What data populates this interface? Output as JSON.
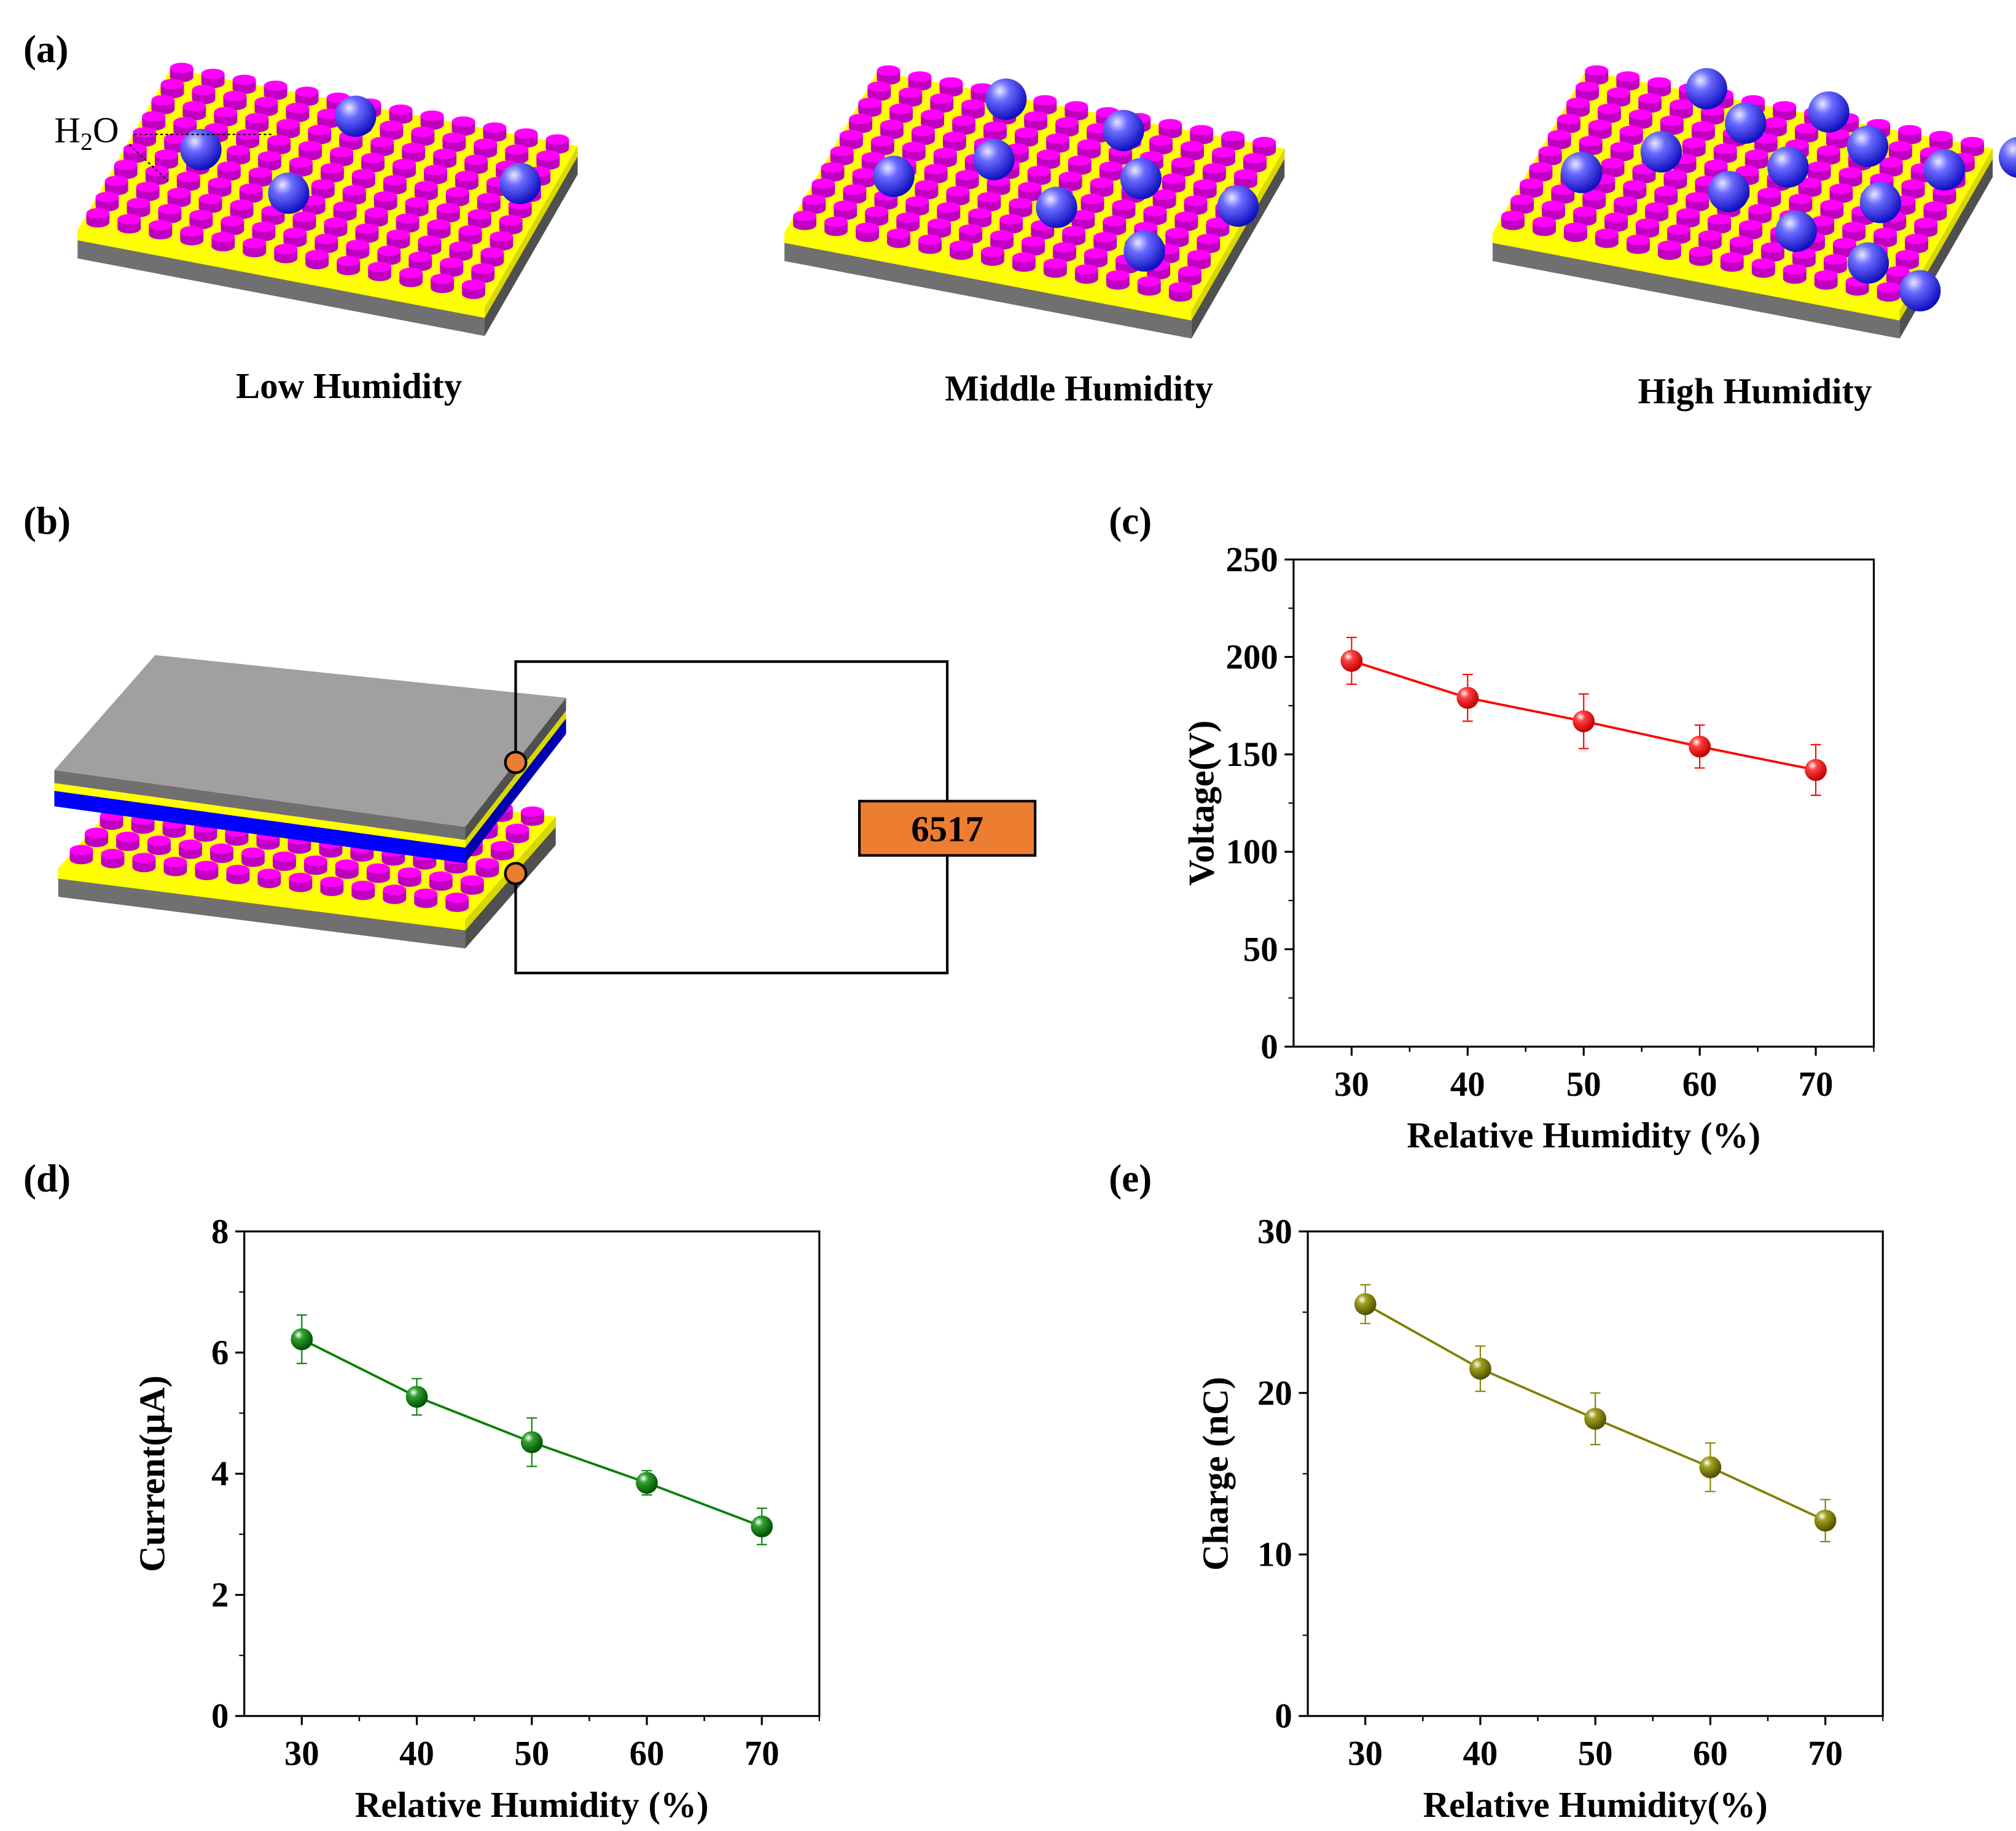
{
  "panel_labels": {
    "a": "(a)",
    "b": "(b)",
    "c": "(c)",
    "d": "(d)",
    "e": "(e)"
  },
  "panel_a": {
    "h2o": {
      "main": "H",
      "sub": "2",
      "tail": "O"
    },
    "captions": [
      "Low Humidity",
      "Middle Humidity",
      "High Humidity"
    ]
  },
  "panel_b": {
    "meter_label": "6517"
  },
  "colors": {
    "pillar": "#ff00ff",
    "electrode": "#ffff00",
    "substrate": "#808080",
    "water": "#3030ff",
    "dielectric": "#0000ff",
    "meter": "#ed7d31",
    "voltage": "#ff0000",
    "current": "#008000",
    "charge": "#808000"
  },
  "chart_data": [
    {
      "id": "c",
      "type": "line",
      "xlabel": "Relative Humidity (%)",
      "ylabel": "Voltage(V)",
      "xlim": [
        25,
        75
      ],
      "ylim": [
        0,
        250
      ],
      "xticks": [
        30,
        40,
        50,
        60,
        70
      ],
      "yticks": [
        0,
        50,
        100,
        150,
        200,
        250
      ],
      "x": [
        30,
        40,
        50,
        60,
        70
      ],
      "series": [
        {
          "name": "Voltage",
          "color": "#ff0000",
          "values": [
            198,
            179,
            167,
            154,
            142
          ],
          "errors": [
            12,
            12,
            14,
            11,
            13
          ]
        }
      ]
    },
    {
      "id": "d",
      "type": "line",
      "xlabel": "Relative Humidity (%)",
      "ylabel": "Current(μA)",
      "xlim": [
        25,
        75
      ],
      "ylim": [
        0,
        8
      ],
      "xticks": [
        30,
        40,
        50,
        60,
        70
      ],
      "yticks": [
        0,
        2,
        4,
        6,
        8
      ],
      "x": [
        30,
        40,
        50,
        60,
        70
      ],
      "series": [
        {
          "name": "Current",
          "color": "#008000",
          "values": [
            6.22,
            5.27,
            4.52,
            3.85,
            3.13
          ],
          "errors": [
            0.4,
            0.3,
            0.4,
            0.2,
            0.3
          ]
        }
      ]
    },
    {
      "id": "e",
      "type": "line",
      "xlabel": "Relative Humidity(%)",
      "ylabel": "Charge (nC)",
      "xlim": [
        25,
        75
      ],
      "ylim": [
        0,
        30
      ],
      "xticks": [
        30,
        40,
        50,
        60,
        70
      ],
      "yticks": [
        0,
        10,
        20,
        30
      ],
      "x": [
        30,
        40,
        50,
        60,
        70
      ],
      "series": [
        {
          "name": "Charge",
          "color": "#808000",
          "values": [
            25.5,
            21.5,
            18.4,
            15.4,
            12.1
          ],
          "errors": [
            1.2,
            1.4,
            1.6,
            1.5,
            1.3
          ]
        }
      ]
    }
  ]
}
